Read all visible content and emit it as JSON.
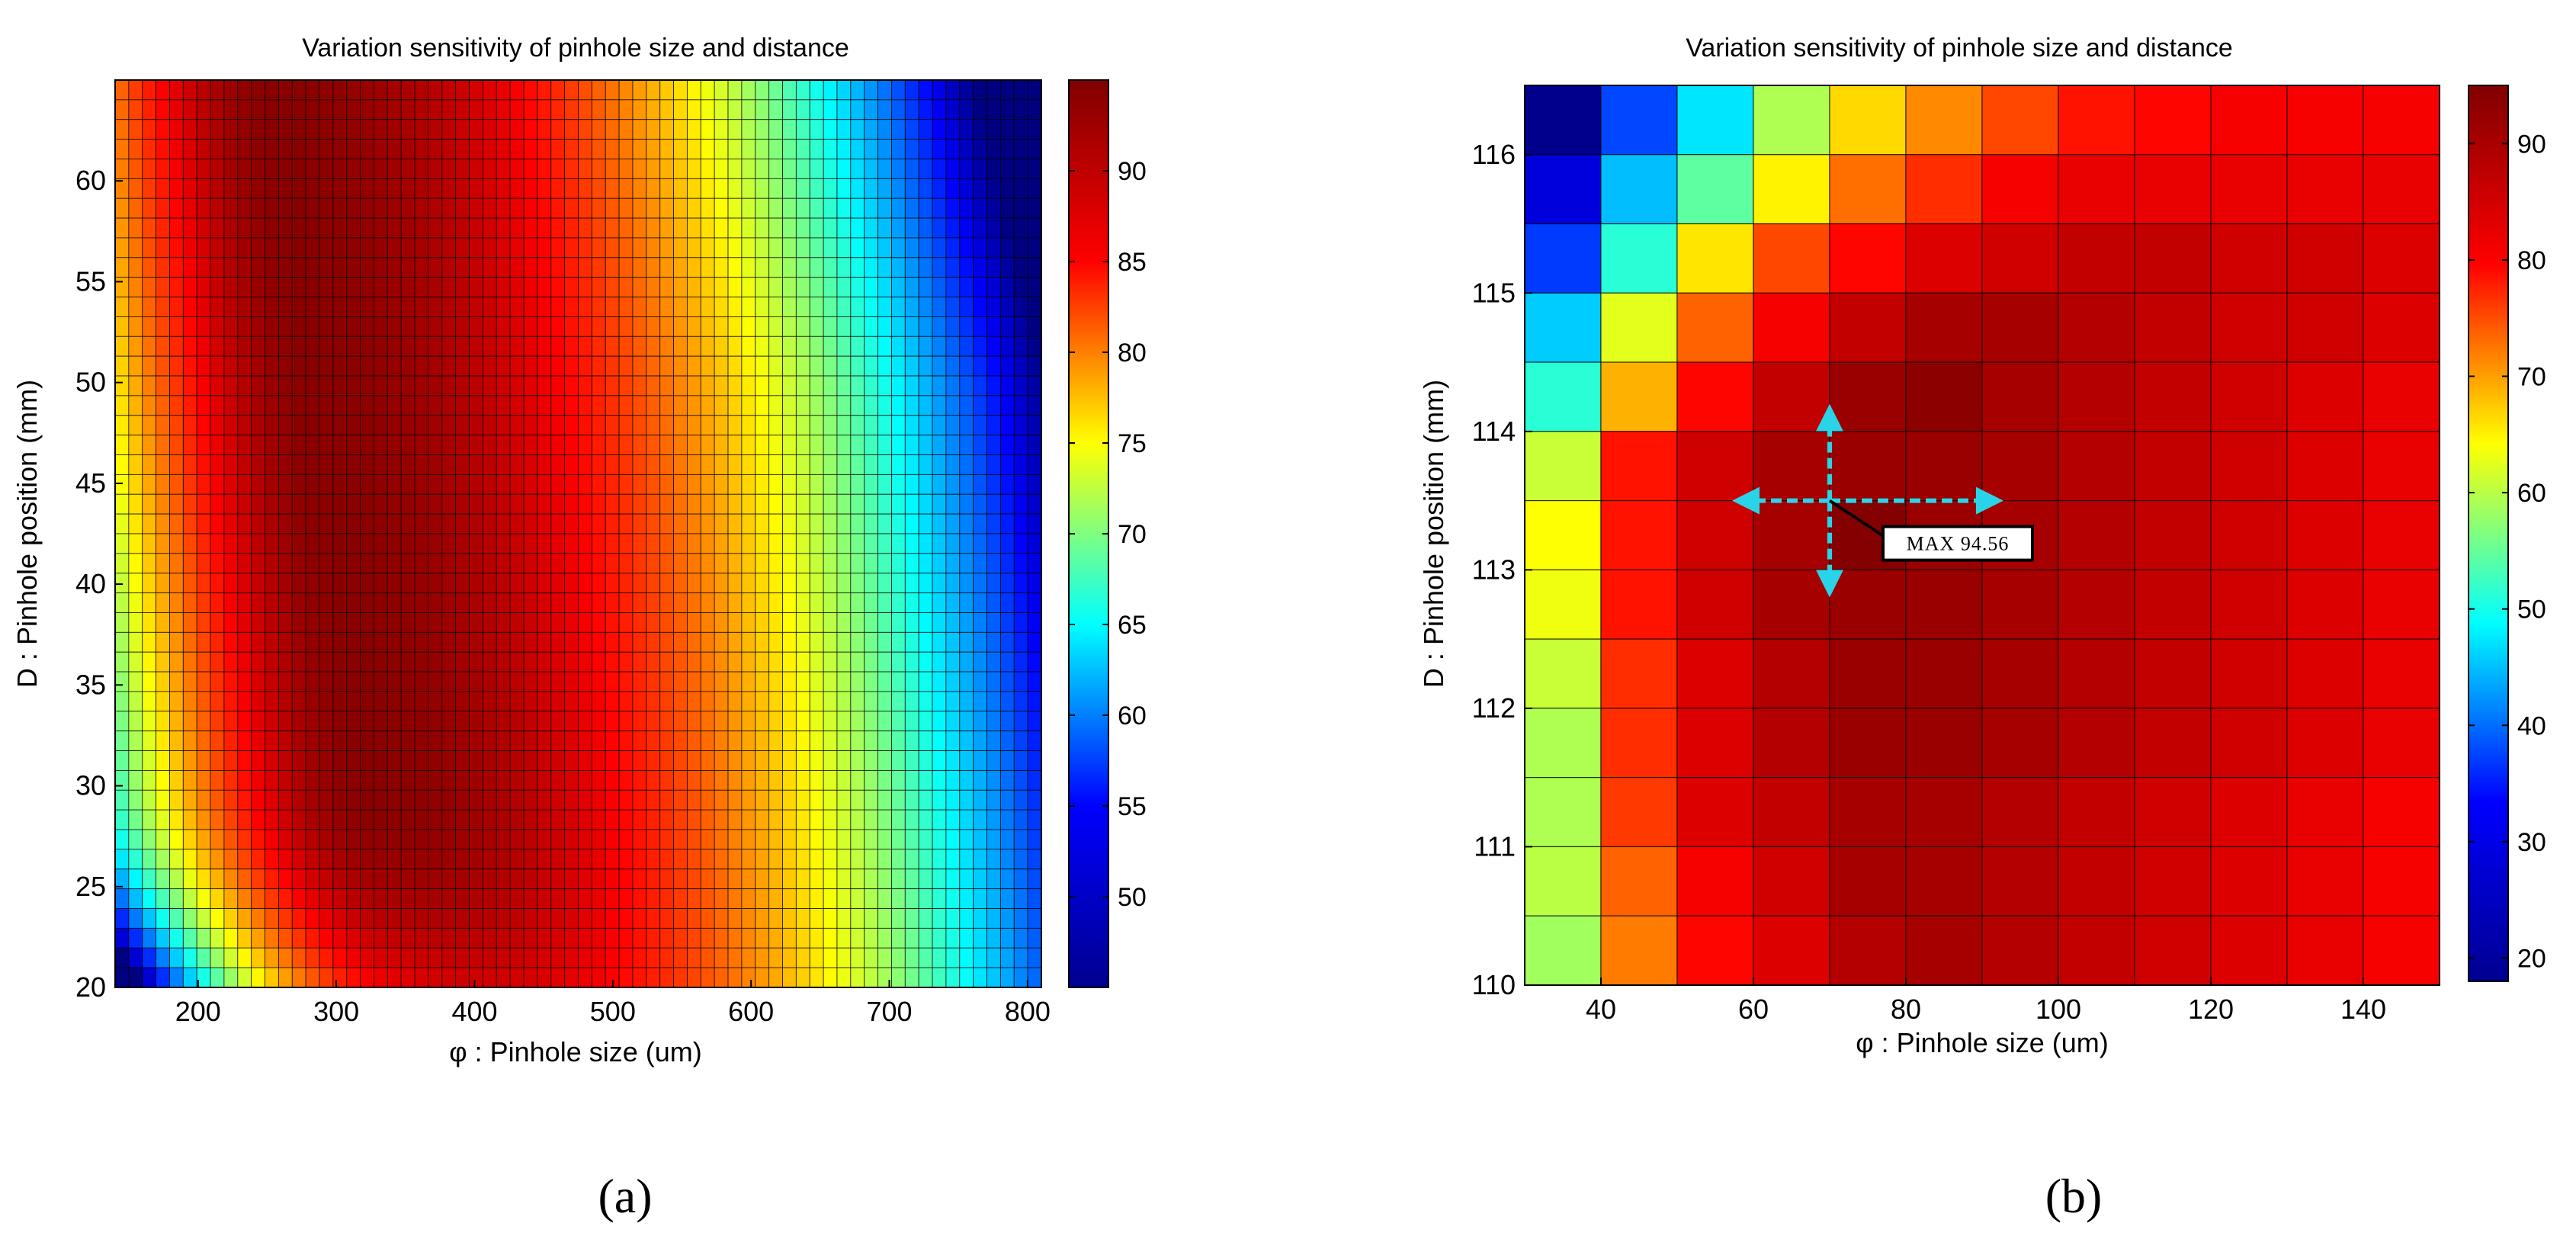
{
  "chart_data": [
    {
      "type": "heatmap",
      "panel": "(a)",
      "title": "Variation sensitivity of pinhole size and distance",
      "xlabel": "φ : Pinhole size (um)",
      "ylabel": "D : Pinhole position (mm)",
      "xlim": [
        140,
        810
      ],
      "ylim": [
        20,
        65
      ],
      "xticks": [
        200,
        300,
        400,
        500,
        600,
        700,
        800
      ],
      "yticks": [
        20,
        25,
        30,
        35,
        40,
        45,
        50,
        55,
        60
      ],
      "grid_cols": 68,
      "grid_rows": 46,
      "clim": [
        45,
        95
      ],
      "colorbar_ticks": [
        50,
        55,
        60,
        65,
        70,
        75,
        80,
        85,
        90
      ],
      "colormap": "jet",
      "model": {
        "peak_value": 94.5,
        "ridge_x_at_ymin": 340,
        "ridge_x_at_ymax": 255,
        "left_decay_per_um": 0.00085,
        "right_decay_per_um": 0.000175,
        "low_d_penalty": [
          30,
          22,
          0.38
        ],
        "high_d_penalty": [
          50,
          420,
          0.0009
        ]
      },
      "colorbar_colors": [
        "#00008f",
        "#0000ff",
        "#00ffff",
        "#ffff00",
        "#ff0000",
        "#800000"
      ]
    },
    {
      "type": "heatmap",
      "panel": "(b)",
      "title": "Variation sensitivity of pinhole size and distance",
      "xlabel": "φ : Pinhole size (um)",
      "ylabel": "D : Pinhole position (mm)",
      "x_edges": [
        30,
        40,
        50,
        60,
        70,
        80,
        90,
        100,
        110,
        120,
        130,
        140,
        150
      ],
      "xticks": [
        40,
        60,
        80,
        100,
        120,
        140
      ],
      "y_edges": [
        110,
        110.5,
        111,
        111.5,
        112,
        112.5,
        113,
        113.5,
        114,
        114.5,
        115,
        115.5,
        116,
        116.5
      ],
      "yticks": [
        110,
        111,
        112,
        113,
        114,
        115,
        116
      ],
      "clim": [
        18,
        95
      ],
      "colorbar_ticks": [
        20,
        30,
        40,
        50,
        60,
        70,
        80,
        90
      ],
      "colormap": "jet",
      "values_rows_top_to_bottom": [
        [
          19,
          33,
          45,
          60,
          69,
          75,
          80,
          84,
          85,
          86,
          86,
          86
        ],
        [
          25,
          42,
          54,
          67,
          77,
          82,
          86,
          87,
          87,
          87,
          87,
          87
        ],
        [
          32,
          50,
          68,
          80,
          85,
          88,
          89,
          90,
          90,
          89,
          89,
          88
        ],
        [
          43,
          64,
          78,
          86,
          90,
          92,
          92,
          91,
          90,
          89,
          89,
          88
        ],
        [
          50,
          72,
          85,
          90,
          93,
          94,
          92,
          91,
          90,
          89,
          88,
          87
        ],
        [
          62,
          84,
          89,
          92,
          93,
          93,
          92,
          91,
          90,
          89,
          88,
          87
        ],
        [
          66,
          84,
          89,
          92,
          94.56,
          93,
          92,
          91,
          90,
          89,
          88,
          87
        ],
        [
          65,
          84,
          89,
          92,
          93,
          93,
          92,
          91,
          90,
          89,
          88,
          87
        ],
        [
          62,
          82,
          88,
          91,
          93,
          93,
          92,
          91,
          90,
          89,
          88,
          87
        ],
        [
          60,
          82,
          88,
          91,
          93,
          93,
          92,
          91,
          90,
          89,
          88,
          87
        ],
        [
          60,
          81,
          88,
          90,
          92,
          92,
          91,
          90,
          89,
          88,
          87,
          86
        ],
        [
          61,
          78,
          86,
          89,
          92,
          92,
          91,
          90,
          89,
          88,
          87,
          86
        ],
        [
          59,
          76,
          85,
          88,
          91,
          92,
          91,
          90,
          89,
          88,
          87,
          86
        ]
      ],
      "annotation": {
        "text": "MAX 94.56",
        "x": 70,
        "y": 113.5,
        "arrow_x_range": [
          59,
          91
        ],
        "arrow_y_range": [
          112.9,
          114.1
        ],
        "arrow_color": "#29d4e8"
      },
      "colorbar_colors": [
        "#00008f",
        "#0000ff",
        "#00ffff",
        "#ffff00",
        "#ff0000",
        "#800000"
      ]
    }
  ],
  "captions": {
    "a": "(a)",
    "b": "(b)"
  }
}
